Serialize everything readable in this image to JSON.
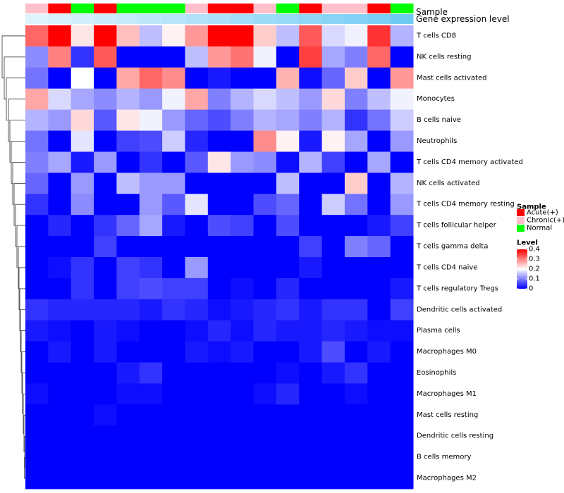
{
  "chart_data": {
    "type": "heatmap",
    "title": "",
    "annotation_rows": {
      "sample_label": "Sample",
      "expression_label": "Gene expression level"
    },
    "columns": {
      "sample": [
        "Chronic(+)",
        "Acute(+)",
        "Normal",
        "Acute(+)",
        "Normal",
        "Normal",
        "Normal",
        "Chronic(+)",
        "Acute(+)",
        "Acute(+)",
        "Chronic(+)",
        "Normal",
        "Acute(+)",
        "Chronic(+)",
        "Chronic(+)",
        "Acute(+)",
        "Normal"
      ],
      "expression_level": [
        0.05,
        0.1,
        0.15,
        0.2,
        0.25,
        0.3,
        0.35,
        0.4,
        0.45,
        0.5,
        0.55,
        0.6,
        0.65,
        0.7,
        0.75,
        0.8,
        0.9
      ]
    },
    "rows": [
      "T cells CD8",
      "NK cells resting",
      "Mast cells activated",
      "Monocytes",
      "B cells naive",
      "Neutrophils",
      "T cells CD4 memory activated",
      "NK cells activated",
      "T cells CD4 memory resting",
      "T cells follicular helper",
      "T cells gamma delta",
      "T cells CD4 naive",
      "T cells regulatory  Tregs",
      "Dendritic cells activated",
      "Plasma cells",
      "Macrophages M0",
      "Eosinophils",
      "Macrophages M1",
      "Mast cells resting",
      "Dendritic cells resting",
      "B cells memory",
      "Macrophages M2"
    ],
    "values": [
      [
        0.32,
        0.4,
        0.22,
        0.4,
        0.25,
        0.15,
        0.21,
        0.28,
        0.4,
        0.4,
        0.24,
        0.15,
        0.33,
        0.17,
        0.19,
        0.36,
        0.14
      ],
      [
        0.11,
        0.3,
        0.04,
        0.33,
        0.0,
        0.0,
        0.0,
        0.15,
        0.28,
        0.31,
        0.19,
        0.0,
        0.35,
        0.13,
        0.1,
        0.32,
        0.0
      ],
      [
        0.09,
        0.0,
        0.2,
        0.0,
        0.27,
        0.32,
        0.29,
        0.0,
        0.02,
        0.0,
        0.0,
        0.26,
        0.01,
        0.08,
        0.24,
        0.0,
        0.28
      ],
      [
        0.27,
        0.17,
        0.13,
        0.11,
        0.14,
        0.12,
        0.19,
        0.27,
        0.1,
        0.14,
        0.17,
        0.15,
        0.12,
        0.23,
        0.1,
        0.15,
        0.19
      ],
      [
        0.14,
        0.12,
        0.23,
        0.07,
        0.22,
        0.19,
        0.12,
        0.08,
        0.06,
        0.1,
        0.14,
        0.13,
        0.1,
        0.14,
        0.04,
        0.09,
        0.16
      ],
      [
        0.09,
        0.0,
        0.18,
        0.0,
        0.05,
        0.06,
        0.16,
        0.03,
        0.0,
        0.0,
        0.29,
        0.21,
        0.02,
        0.21,
        0.13,
        0.0,
        0.12
      ],
      [
        0.1,
        0.13,
        0.02,
        0.12,
        0.0,
        0.04,
        0.0,
        0.07,
        0.22,
        0.12,
        0.11,
        0.01,
        0.14,
        0.05,
        0.0,
        0.13,
        0.0
      ],
      [
        0.08,
        0.0,
        0.12,
        0.0,
        0.15,
        0.12,
        0.12,
        0.0,
        0.0,
        0.0,
        0.0,
        0.15,
        0.0,
        0.0,
        0.24,
        0.0,
        0.14
      ],
      [
        0.04,
        0.0,
        0.11,
        0.0,
        0.0,
        0.12,
        0.07,
        0.18,
        0.0,
        0.0,
        0.06,
        0.08,
        0.0,
        0.16,
        0.09,
        0.0,
        0.12
      ],
      [
        0.0,
        0.03,
        0.0,
        0.04,
        0.08,
        0.13,
        0.02,
        0.0,
        0.06,
        0.05,
        0.0,
        0.06,
        0.0,
        0.0,
        0.0,
        0.02,
        0.05
      ],
      [
        0.0,
        0.0,
        0.0,
        0.05,
        0.0,
        0.0,
        0.0,
        0.0,
        0.0,
        0.0,
        0.0,
        0.0,
        0.05,
        0.0,
        0.1,
        0.08,
        0.0
      ],
      [
        0.0,
        0.01,
        0.04,
        0.0,
        0.05,
        0.04,
        0.0,
        0.12,
        0.0,
        0.0,
        0.0,
        0.0,
        0.02,
        0.0,
        0.0,
        0.0,
        0.0
      ],
      [
        0.0,
        0.0,
        0.04,
        0.0,
        0.05,
        0.06,
        0.05,
        0.05,
        0.0,
        0.01,
        0.0,
        0.03,
        0.0,
        0.0,
        0.0,
        0.0,
        0.02
      ],
      [
        0.04,
        0.03,
        0.03,
        0.03,
        0.03,
        0.02,
        0.04,
        0.03,
        0.01,
        0.02,
        0.03,
        0.04,
        0.02,
        0.04,
        0.04,
        0.0,
        0.05
      ],
      [
        0.02,
        0.01,
        0.0,
        0.02,
        0.01,
        0.0,
        0.0,
        0.01,
        0.03,
        0.01,
        0.03,
        0.02,
        0.02,
        0.03,
        0.02,
        0.01,
        0.01
      ],
      [
        0.0,
        0.02,
        0.0,
        0.02,
        0.0,
        0.0,
        0.0,
        0.02,
        0.01,
        0.02,
        0.0,
        0.0,
        0.02,
        0.06,
        0.0,
        0.02,
        0.0
      ],
      [
        0.0,
        0.0,
        0.0,
        0.0,
        0.02,
        0.04,
        0.0,
        0.0,
        0.0,
        0.0,
        0.0,
        0.01,
        0.0,
        0.02,
        0.04,
        0.0,
        0.0
      ],
      [
        0.01,
        0.0,
        0.0,
        0.0,
        0.01,
        0.01,
        0.0,
        0.0,
        0.0,
        0.0,
        0.01,
        0.03,
        0.0,
        0.0,
        0.01,
        0.0,
        0.0
      ],
      [
        0.0,
        0.0,
        0.0,
        0.01,
        0.0,
        0.0,
        0.0,
        0.0,
        0.0,
        0.0,
        0.0,
        0.0,
        0.0,
        0.0,
        0.0,
        0.0,
        0.0
      ],
      [
        0.0,
        0.0,
        0.0,
        0.0,
        0.0,
        0.0,
        0.0,
        0.0,
        0.0,
        0.0,
        0.0,
        0.0,
        0.0,
        0.0,
        0.0,
        0.0,
        0.0
      ],
      [
        0.0,
        0.0,
        0.0,
        0.0,
        0.0,
        0.0,
        0.0,
        0.0,
        0.0,
        0.0,
        0.0,
        0.0,
        0.0,
        0.0,
        0.0,
        0.0,
        0.0
      ],
      [
        0.0,
        0.0,
        0.0,
        0.0,
        0.0,
        0.0,
        0.0,
        0.0,
        0.0,
        0.0,
        0.0,
        0.0,
        0.0,
        0.0,
        0.0,
        0.0,
        0.0
      ]
    ],
    "color_scale": {
      "min": 0,
      "mid": 0.2,
      "max": 0.4,
      "low_color": "#0000ff",
      "mid_color": "#ffffff",
      "high_color": "#ff0000"
    },
    "legend_sample": {
      "title": "Sample",
      "entries": [
        {
          "label": "Acute(+)",
          "color": "#ff0000"
        },
        {
          "label": "Chronic(+)",
          "color": "#ffc0cb"
        },
        {
          "label": "Normal",
          "color": "#00ff00"
        }
      ]
    },
    "legend_level": {
      "title": "Level",
      "ticks": [
        {
          "value": 0.4,
          "label": "0.4"
        },
        {
          "value": 0.3,
          "label": "0.3"
        },
        {
          "value": 0.2,
          "label": "0.2"
        },
        {
          "value": 0.1,
          "label": "0.1"
        },
        {
          "value": 0,
          "label": "0"
        }
      ]
    },
    "expression_scale": {
      "low_color": "#e6f6fd",
      "high_color": "#62c5f2"
    },
    "row_dendrogram": true,
    "legend_position": "right"
  }
}
